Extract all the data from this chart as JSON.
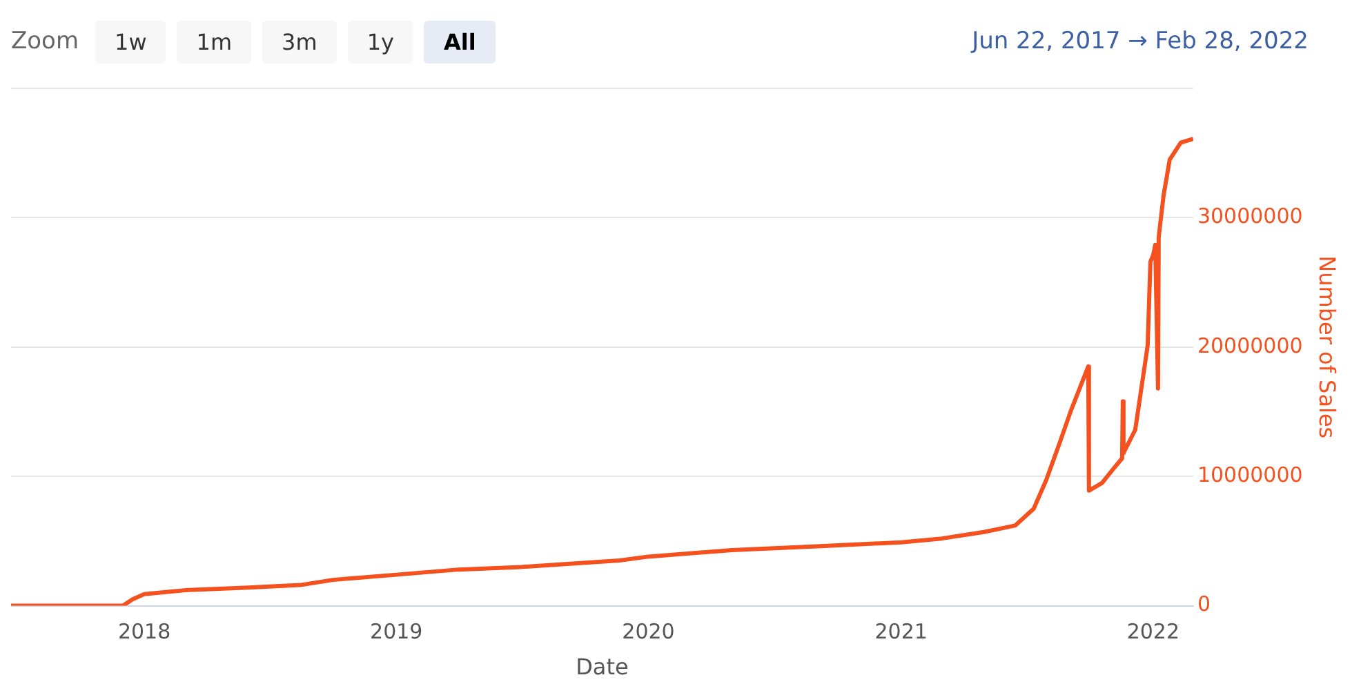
{
  "chart_data": {
    "type": "line",
    "xlabel": "Date",
    "ylabel": "Number of Sales",
    "annotations": [
      "Zoom",
      "1w",
      "1m",
      "3m",
      "1y",
      "All",
      "Jun 22, 2017 → Feb 28, 2022"
    ],
    "x": [
      "2017-06-22",
      "2017-12-01",
      "2017-12-15",
      "2018-01-01",
      "2018-03-01",
      "2018-06-01",
      "2018-08-15",
      "2018-10-01",
      "2019-01-01",
      "2019-04-01",
      "2019-07-01",
      "2019-11-20",
      "2020-01-01",
      "2020-05-01",
      "2020-09-01",
      "2021-01-01",
      "2021-03-01",
      "2021-05-01",
      "2021-06-15",
      "2021-07-12",
      "2021-07-30",
      "2021-08-18",
      "2021-09-04",
      "2021-09-29",
      "2021-09-30",
      "2021-10-19",
      "2021-11-03",
      "2021-11-17",
      "2021-11-18",
      "2021-11-19",
      "2021-12-06",
      "2021-12-24",
      "2021-12-28",
      "2022-01-01",
      "2022-01-04",
      "2022-01-08",
      "2022-01-09",
      "2022-01-16",
      "2022-01-25",
      "2022-02-10",
      "2022-02-28"
    ],
    "series": [
      {
        "color": "#f4511e",
        "values": [
          0,
          0,
          500000,
          900000,
          1200000,
          1400000,
          1600000,
          2000000,
          2400000,
          2800000,
          3000000,
          3500000,
          3800000,
          4300000,
          4600000,
          4900000,
          5200000,
          5700000,
          6200000,
          7500000,
          9700000,
          12500000,
          15100000,
          18500000,
          8900000,
          9500000,
          10500000,
          11400000,
          15800000,
          11800000,
          13600000,
          20100000,
          26600000,
          27100000,
          27900000,
          16800000,
          28500000,
          31700000,
          34500000,
          35800000,
          36100000
        ]
      }
    ],
    "xlim": [
      "2017-06-22",
      "2022-02-28"
    ],
    "xticks": [
      {
        "value": "2018-01-01",
        "label": "2018"
      },
      {
        "value": "2019-01-01",
        "label": "2019"
      },
      {
        "value": "2020-01-01",
        "label": "2020"
      },
      {
        "value": "2021-01-01",
        "label": "2021"
      },
      {
        "value": "2022-01-01",
        "label": "2022"
      }
    ],
    "ylim": [
      0,
      40000000
    ],
    "yticks": [
      0,
      10000000,
      20000000,
      30000000,
      {
        "value": 40000000,
        "label": null
      }
    ],
    "grid": "y",
    "legend": false,
    "marker": "none",
    "line_style": "solid"
  }
}
